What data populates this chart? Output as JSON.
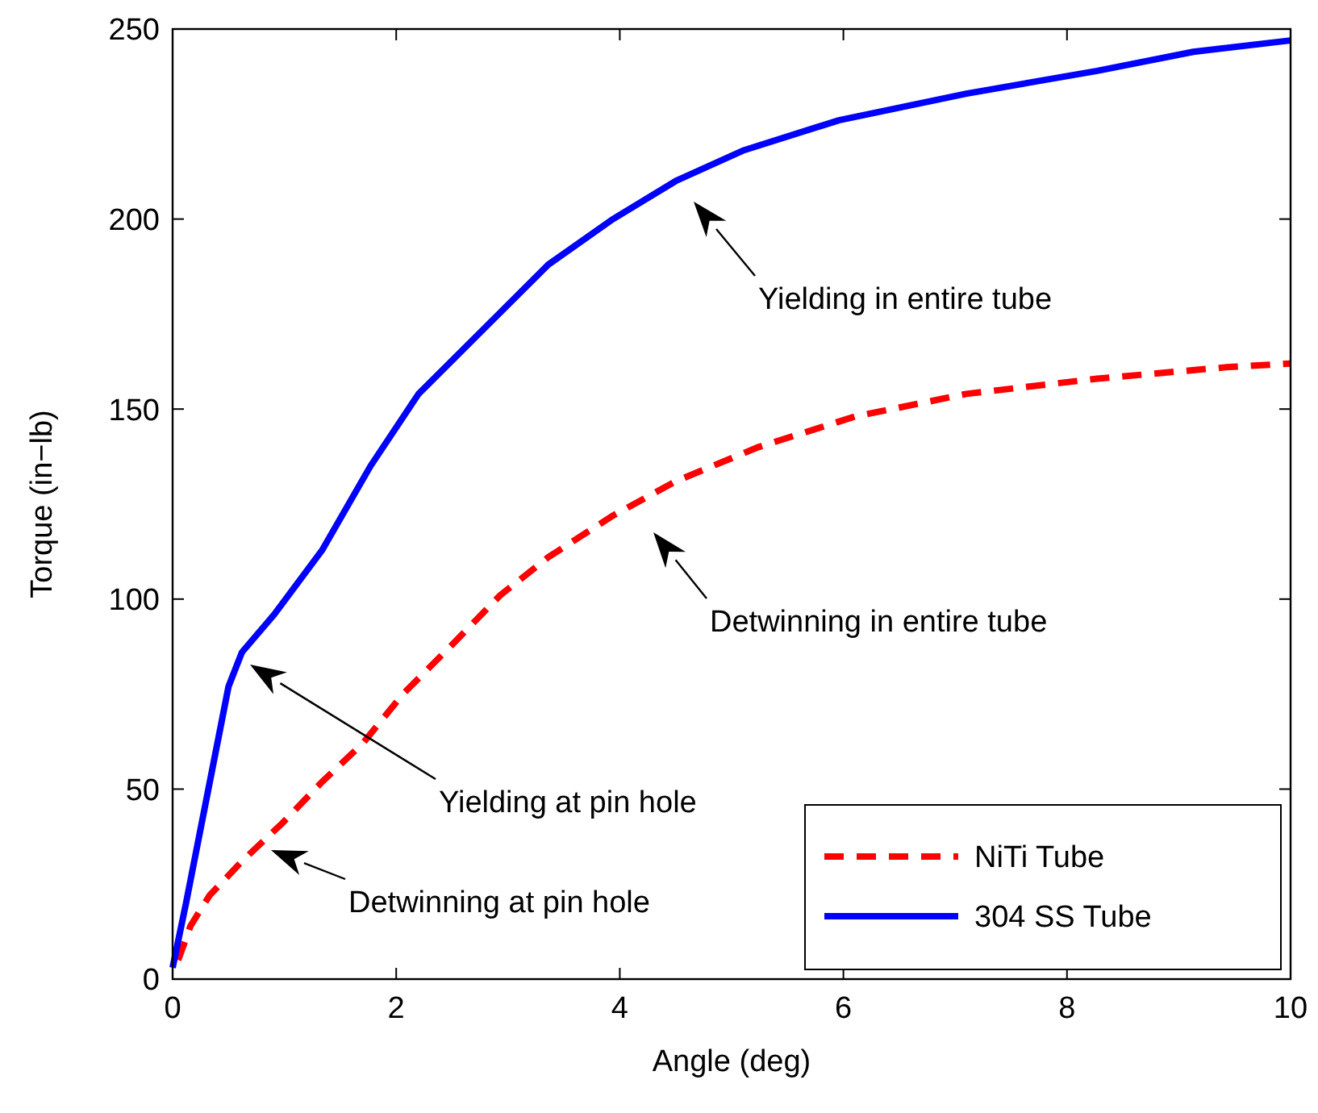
{
  "chart_data": {
    "type": "line",
    "xlabel": "Angle (deg)",
    "ylabel": "Torque (in−lb)",
    "xlim": [
      0,
      10
    ],
    "ylim": [
      0,
      250
    ],
    "xticks": [
      0,
      2,
      4,
      6,
      8,
      10
    ],
    "yticks": [
      0,
      50,
      100,
      150,
      200,
      250
    ],
    "grid": false,
    "legend": "bottom right",
    "series": [
      {
        "name": "NiTi Tube",
        "color": "#ff0000",
        "line_style": "dashed",
        "x": [
          0.05,
          0.16,
          0.33,
          0.62,
          0.98,
          1.34,
          1.7,
          2.06,
          2.5,
          2.93,
          3.36,
          3.94,
          4.5,
          5.24,
          6.1,
          7.1,
          8.27,
          9.42,
          10
        ],
        "values": [
          5,
          14,
          22,
          31,
          41,
          52,
          62,
          75,
          88,
          101,
          111,
          122,
          131,
          140,
          148,
          154,
          158,
          161,
          162
        ]
      },
      {
        "name": "304 SS Tube",
        "color": "#0000ff",
        "line_style": "solid",
        "x": [
          0,
          0.12,
          0.26,
          0.4,
          0.5,
          0.62,
          0.91,
          1.34,
          1.77,
          2.2,
          2.78,
          3.36,
          3.94,
          4.5,
          5.1,
          5.96,
          7.1,
          8.27,
          9.13,
          10
        ],
        "values": [
          3,
          20,
          41,
          62,
          77,
          86,
          96,
          113,
          135,
          154,
          171,
          188,
          200,
          210,
          218,
          226,
          233,
          239,
          244,
          247
        ]
      }
    ],
    "annotations": [
      "Yielding in entire tube",
      "Detwinning in entire tube",
      "Yielding at pin hole",
      "Detwinning at pin hole"
    ]
  }
}
